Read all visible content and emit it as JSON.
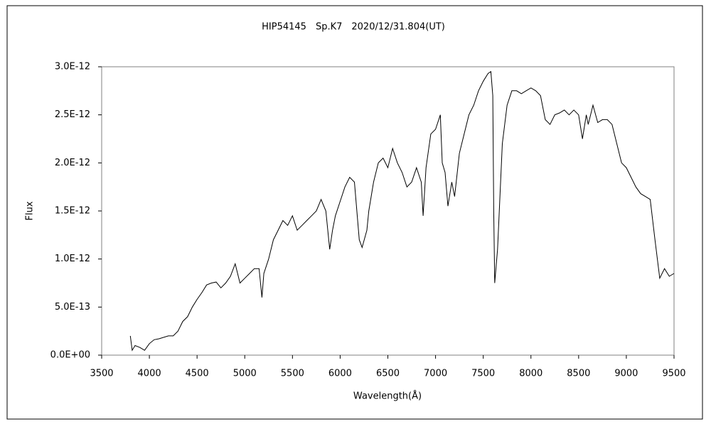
{
  "chart_data": {
    "type": "line",
    "title": "HIP54145　Sp.K7　2020/12/31.804(UT)",
    "xlabel": "Wavelength(Å)",
    "ylabel": "Flux",
    "xlim": [
      3500,
      9500
    ],
    "xticks": [
      3500,
      4000,
      4500,
      5000,
      5500,
      6000,
      6500,
      7000,
      7500,
      8000,
      8500,
      9000,
      9500
    ],
    "ylim": [
      0,
      3e-12
    ],
    "yticks": [
      {
        "value": 0,
        "label": "0.0E+00"
      },
      {
        "value": 5e-13,
        "label": "5.0E-13"
      },
      {
        "value": 1e-12,
        "label": "1.0E-12"
      },
      {
        "value": 1.5e-12,
        "label": "1.5E-12"
      },
      {
        "value": 2e-12,
        "label": "2.0E-12"
      },
      {
        "value": 2.5e-12,
        "label": "2.5E-12"
      },
      {
        "value": 3e-12,
        "label": "3.0E-12"
      }
    ],
    "grid": false,
    "series": [
      {
        "name": "Flux",
        "color": "#000000",
        "x": [
          3800,
          3820,
          3850,
          3900,
          3950,
          4000,
          4050,
          4100,
          4200,
          4250,
          4300,
          4350,
          4400,
          4450,
          4500,
          4550,
          4600,
          4650,
          4700,
          4750,
          4800,
          4850,
          4900,
          4950,
          5000,
          5050,
          5100,
          5150,
          5180,
          5200,
          5250,
          5300,
          5350,
          5400,
          5450,
          5500,
          5550,
          5600,
          5650,
          5700,
          5750,
          5800,
          5850,
          5890,
          5920,
          5950,
          6000,
          6050,
          6100,
          6150,
          6200,
          6230,
          6280,
          6300,
          6350,
          6400,
          6450,
          6500,
          6550,
          6600,
          6650,
          6700,
          6750,
          6800,
          6850,
          6870,
          6900,
          6950,
          7000,
          7050,
          7070,
          7100,
          7130,
          7170,
          7200,
          7250,
          7300,
          7350,
          7400,
          7450,
          7500,
          7550,
          7580,
          7600,
          7610,
          7620,
          7650,
          7700,
          7750,
          7800,
          7850,
          7900,
          7950,
          8000,
          8050,
          8100,
          8150,
          8200,
          8250,
          8300,
          8350,
          8400,
          8450,
          8500,
          8540,
          8580,
          8600,
          8650,
          8700,
          8750,
          8800,
          8850,
          8900,
          8950,
          9000,
          9050,
          9100,
          9150,
          9200,
          9250,
          9300,
          9350,
          9400,
          9450,
          9500
        ],
        "values": [
          2e-13,
          5e-14,
          1e-13,
          8e-14,
          5e-14,
          1.2e-13,
          1.6e-13,
          1.7e-13,
          2e-13,
          2e-13,
          2.5e-13,
          3.5e-13,
          4e-13,
          5e-13,
          5.8e-13,
          6.5e-13,
          7.3e-13,
          7.5e-13,
          7.6e-13,
          7e-13,
          7.5e-13,
          8.2e-13,
          9.5e-13,
          7.5e-13,
          8e-13,
          8.5e-13,
          9e-13,
          9e-13,
          6e-13,
          8.5e-13,
          1e-12,
          1.2e-12,
          1.3e-12,
          1.4e-12,
          1.35e-12,
          1.45e-12,
          1.3e-12,
          1.35e-12,
          1.4e-12,
          1.45e-12,
          1.5e-12,
          1.62e-12,
          1.5e-12,
          1.1e-12,
          1.3e-12,
          1.45e-12,
          1.6e-12,
          1.75e-12,
          1.85e-12,
          1.8e-12,
          1.2e-12,
          1.12e-12,
          1.3e-12,
          1.5e-12,
          1.8e-12,
          2e-12,
          2.05e-12,
          1.95e-12,
          2.15e-12,
          2e-12,
          1.9e-12,
          1.75e-12,
          1.8e-12,
          1.95e-12,
          1.8e-12,
          1.45e-12,
          1.95e-12,
          2.3e-12,
          2.35e-12,
          2.5e-12,
          2e-12,
          1.9e-12,
          1.55e-12,
          1.8e-12,
          1.65e-12,
          2.1e-12,
          2.3e-12,
          2.5e-12,
          2.6e-12,
          2.75e-12,
          2.85e-12,
          2.93e-12,
          2.95e-12,
          2.7e-12,
          1.5e-12,
          7.5e-13,
          1.1e-12,
          2.2e-12,
          2.6e-12,
          2.75e-12,
          2.75e-12,
          2.72e-12,
          2.75e-12,
          2.78e-12,
          2.75e-12,
          2.7e-12,
          2.45e-12,
          2.4e-12,
          2.5e-12,
          2.52e-12,
          2.55e-12,
          2.5e-12,
          2.55e-12,
          2.5e-12,
          2.25e-12,
          2.5e-12,
          2.4e-12,
          2.6e-12,
          2.42e-12,
          2.45e-12,
          2.45e-12,
          2.4e-12,
          2.2e-12,
          2e-12,
          1.95e-12,
          1.85e-12,
          1.75e-12,
          1.68e-12,
          1.65e-12,
          1.62e-12,
          1.2e-12,
          8e-13,
          9e-13,
          8.2e-13,
          8.5e-13
        ]
      }
    ]
  }
}
